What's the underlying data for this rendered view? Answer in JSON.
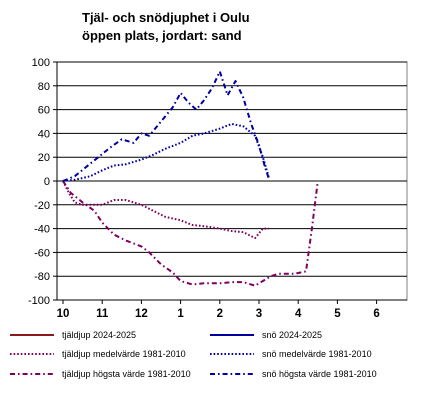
{
  "chart_data": {
    "type": "line",
    "title": "Tjäl- och snödjuphet i Oulu",
    "subtitle": "öppen plats, jordart: sand",
    "ylim": [
      -100,
      100
    ],
    "y_ticks": [
      "100",
      "80",
      "60",
      "40",
      "20",
      "0",
      "-20",
      "-40",
      "-60",
      "-80",
      "-100"
    ],
    "x_ticks": [
      "10",
      "11",
      "12",
      "1",
      "2",
      "3",
      "4",
      "5",
      "6"
    ],
    "xlim": [
      0,
      8
    ],
    "grid": "horizontal",
    "legend_placement": "bottom",
    "series": [
      {
        "name": "tjäldjup 2024-2025",
        "color": "#8B1A1A",
        "style": "solid",
        "x": [],
        "y": []
      },
      {
        "name": "snö 2024-2025",
        "color": "#0000A0",
        "style": "solid",
        "x": [],
        "y": []
      },
      {
        "name": "tjäldjup medelvärde 1981-2010",
        "color": "#800060",
        "style": "dotted",
        "x": [
          0,
          0.15,
          0.3,
          0.5,
          0.7,
          1.0,
          1.3,
          1.6,
          2.0,
          2.3,
          2.6,
          3.0,
          3.3,
          3.6,
          4.0,
          4.3,
          4.6,
          4.9,
          5.1,
          5.25
        ],
        "y": [
          0,
          -10,
          -18,
          -20,
          -20,
          -20,
          -16,
          -16,
          -20,
          -25,
          -30,
          -33,
          -37,
          -38,
          -40,
          -42,
          -43,
          -48,
          -40,
          -40
        ]
      },
      {
        "name": "snö medelvärde 1981-2010",
        "color": "#0000A0",
        "style": "dotted",
        "x": [
          0,
          0.3,
          0.7,
          1.0,
          1.3,
          1.6,
          2.0,
          2.3,
          2.6,
          3.0,
          3.3,
          3.6,
          4.0,
          4.3,
          4.6,
          4.9,
          5.1,
          5.25
        ],
        "y": [
          0,
          1,
          4,
          9,
          13,
          14,
          18,
          22,
          27,
          32,
          38,
          40,
          44,
          48,
          46,
          38,
          20,
          3
        ]
      },
      {
        "name": "tjäldjup högsta värde 1981-2010",
        "color": "#800060",
        "style": "dashdot",
        "x": [
          0,
          0.2,
          0.5,
          0.8,
          1.0,
          1.3,
          1.6,
          2.0,
          2.2,
          2.5,
          2.8,
          3.0,
          3.3,
          3.6,
          4.0,
          4.3,
          4.6,
          4.9,
          5.1,
          5.3,
          5.5,
          5.7,
          5.9,
          6.2,
          6.35,
          6.5
        ],
        "y": [
          0,
          -10,
          -18,
          -25,
          -35,
          -45,
          -50,
          -55,
          -60,
          -70,
          -77,
          -84,
          -87,
          -86,
          -86,
          -85,
          -85,
          -88,
          -84,
          -80,
          -78,
          -78,
          -78,
          -76,
          -40,
          0
        ]
      },
      {
        "name": "snö högsta värde 1981-2010",
        "color": "#0000A0",
        "style": "dashdot",
        "x": [
          0,
          0.3,
          0.6,
          0.9,
          1.2,
          1.5,
          1.8,
          2.0,
          2.2,
          2.5,
          2.8,
          3.0,
          3.2,
          3.4,
          3.6,
          3.8,
          4.0,
          4.2,
          4.4,
          4.6,
          4.8,
          5.0,
          5.15,
          5.25
        ],
        "y": [
          0,
          4,
          12,
          20,
          28,
          35,
          32,
          40,
          38,
          50,
          62,
          74,
          66,
          60,
          68,
          78,
          92,
          72,
          84,
          70,
          48,
          30,
          12,
          2
        ]
      }
    ]
  }
}
